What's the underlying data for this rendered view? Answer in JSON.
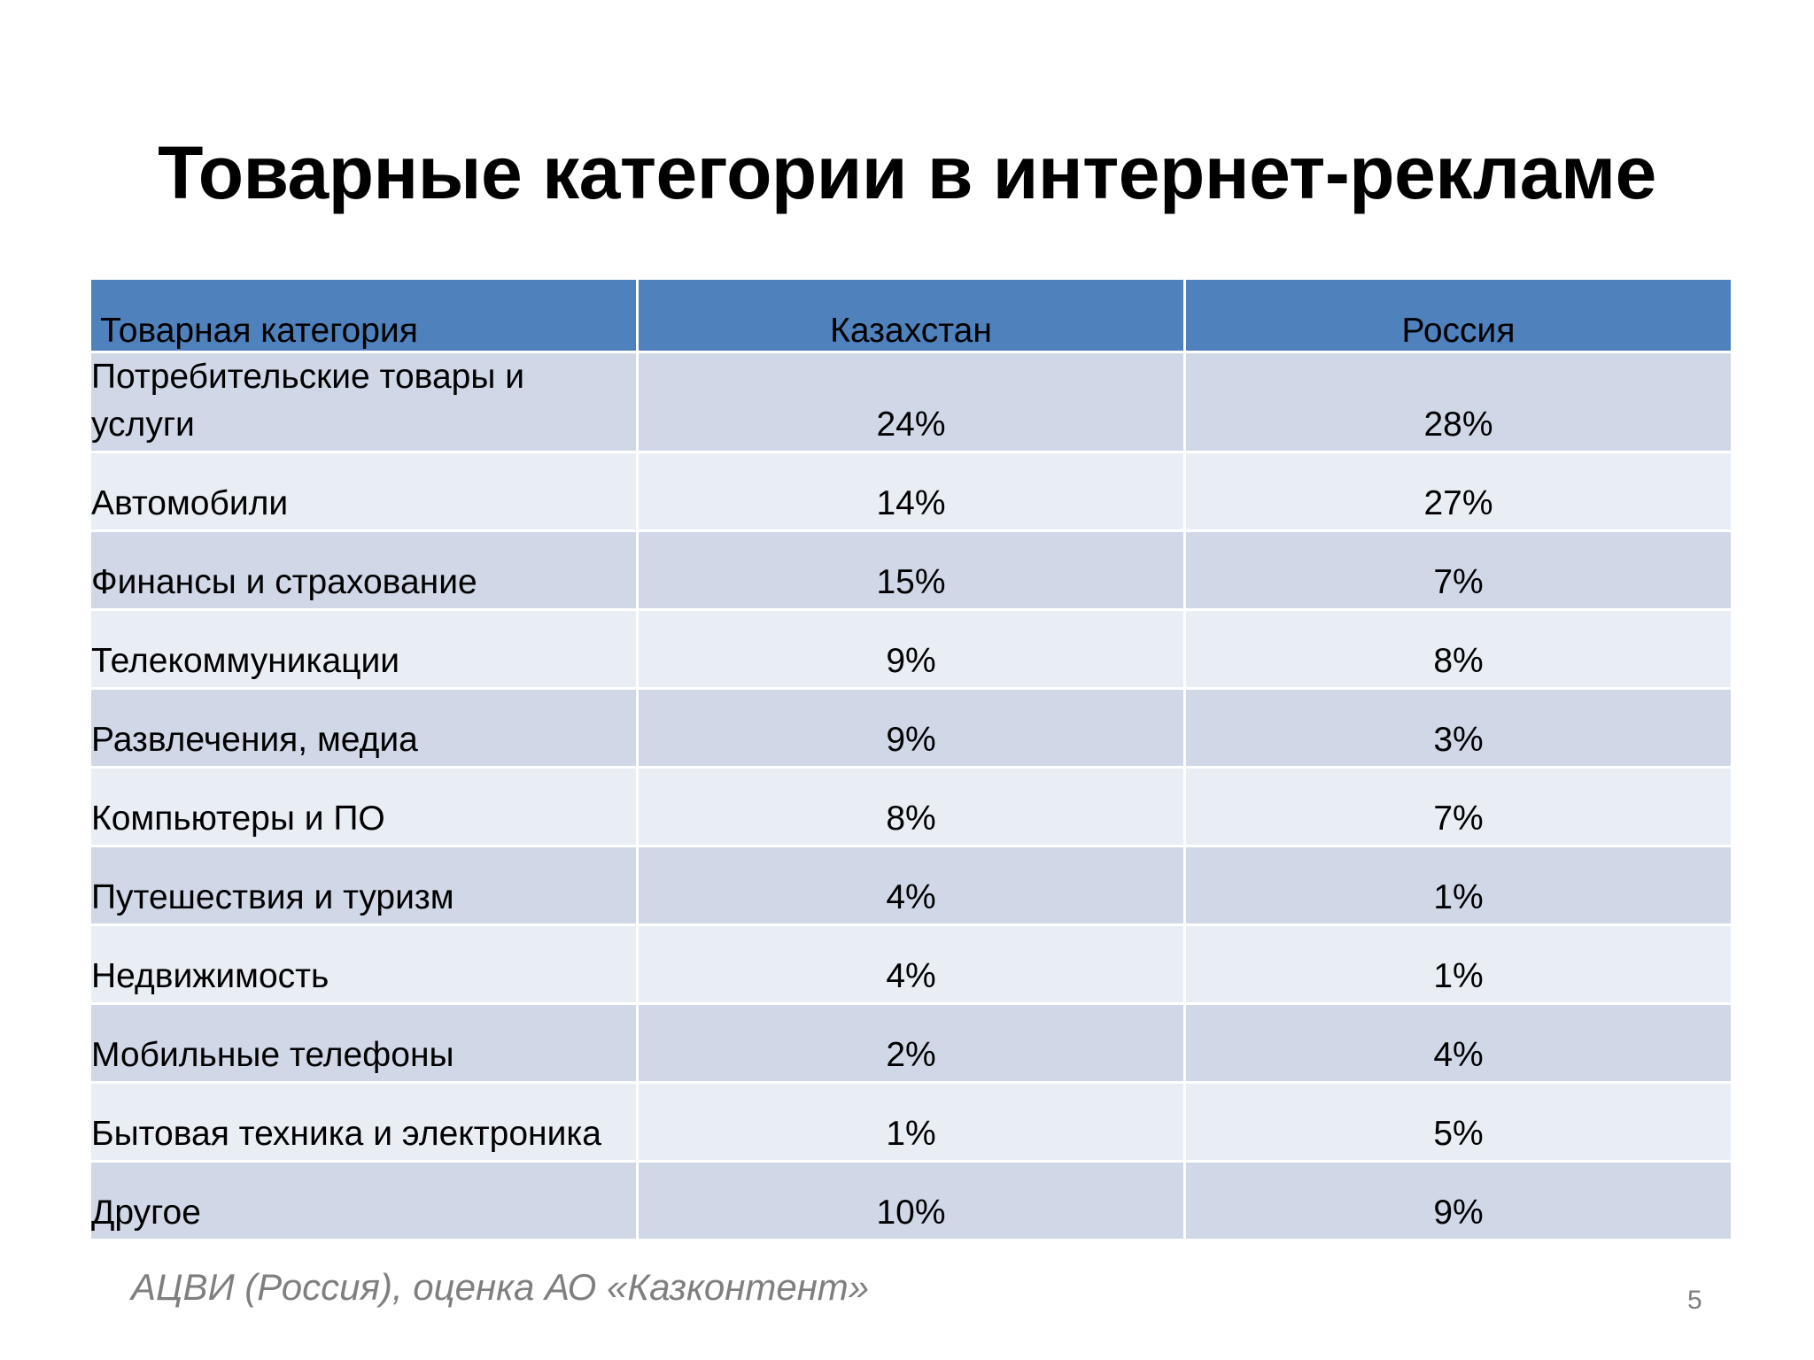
{
  "slide": {
    "title": "Товарные категории в интернет-рекламе",
    "source": "АЦВИ (Россия), оценка АО «Казконтент»",
    "page_number": "5"
  },
  "table": {
    "headers": [
      "Товарная категория",
      "Казахстан",
      "Россия"
    ],
    "rows": [
      {
        "category": "Потребительские товары и услуги",
        "kz": "24%",
        "ru": "28%"
      },
      {
        "category": "Автомобили",
        "kz": "14%",
        "ru": "27%"
      },
      {
        "category": "Финансы и страхование",
        "kz": "15%",
        "ru": "7%"
      },
      {
        "category": "Телекоммуникации",
        "kz": "9%",
        "ru": "8%"
      },
      {
        "category": "Развлечения, медиа",
        "kz": "9%",
        "ru": "3%"
      },
      {
        "category": "Компьютеры и ПО",
        "kz": "8%",
        "ru": "7%"
      },
      {
        "category": "Путешествия и туризм",
        "kz": "4%",
        "ru": "1%"
      },
      {
        "category": "Недвижимость",
        "kz": "4%",
        "ru": "1%"
      },
      {
        "category": "Мобильные телефоны",
        "kz": "2%",
        "ru": "4%"
      },
      {
        "category": "Бытовая техника и электроника",
        "kz": "1%",
        "ru": "5%"
      },
      {
        "category": "Другое",
        "kz": "10%",
        "ru": "9%"
      }
    ]
  },
  "colors": {
    "header": "#4f81bd",
    "row_odd": "#d0d8e8",
    "row_even": "#e9edf4",
    "source_text": "#7f7f7f"
  }
}
